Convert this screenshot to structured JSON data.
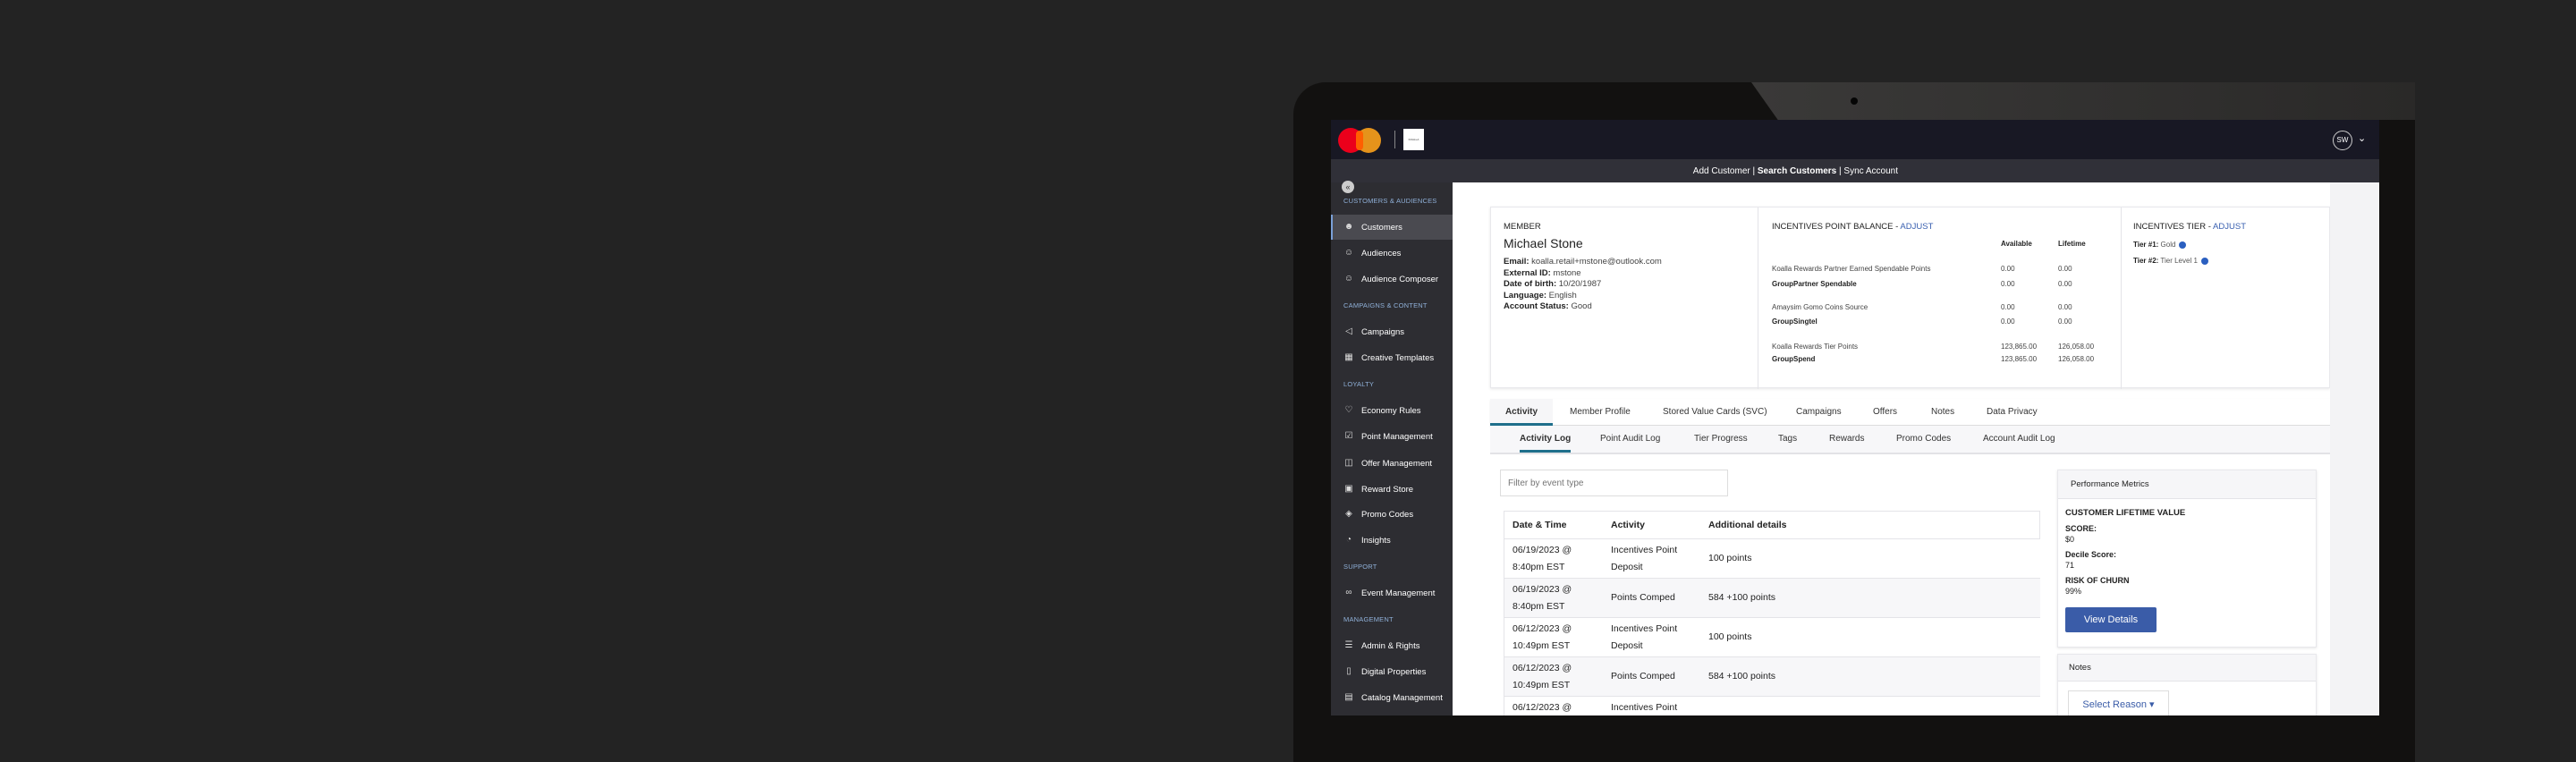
{
  "topbar": {
    "brand_logo": "mastercard-logo",
    "client_logo": "KOALLA",
    "avatar_initials": "SW"
  },
  "subnav": {
    "add": "Add Customer",
    "sep1": " | ",
    "search": "Search Customers",
    "sep2": " | ",
    "sync": "Sync Account"
  },
  "sidebar": {
    "sections": [
      "CUSTOMERS & AUDIENCES",
      "CAMPAIGNS & CONTENT",
      "LOYALTY",
      "SUPPORT",
      "MANAGEMENT"
    ],
    "items": [
      {
        "label": "Customers",
        "icon": "user-icon",
        "active": true
      },
      {
        "label": "Audiences",
        "icon": "users-icon"
      },
      {
        "label": "Audience Composer",
        "icon": "users-icon"
      },
      {
        "label": "Campaigns",
        "icon": "megaphone-icon"
      },
      {
        "label": "Creative Templates",
        "icon": "template-icon"
      },
      {
        "label": "Economy Rules",
        "icon": "heart-icon"
      },
      {
        "label": "Point Management",
        "icon": "checkbox-edit-icon"
      },
      {
        "label": "Offer Management",
        "icon": "gift-icon"
      },
      {
        "label": "Reward Store",
        "icon": "shopping-bag-icon"
      },
      {
        "label": "Promo Codes",
        "icon": "tag-icon"
      },
      {
        "label": "Insights",
        "icon": "pie-chart-icon"
      },
      {
        "label": "Event Management",
        "icon": "link-icon"
      },
      {
        "label": "Admin & Rights",
        "icon": "sliders-icon"
      },
      {
        "label": "Digital Properties",
        "icon": "mobile-icon"
      },
      {
        "label": "Catalog Management",
        "icon": "book-icon"
      }
    ]
  },
  "member": {
    "heading": "MEMBER",
    "name": "Michael Stone",
    "fields": [
      {
        "k": "Email:",
        "v": " koalla.retail+mstone@outlook.com"
      },
      {
        "k": "External ID:",
        "v": " mstone"
      },
      {
        "k": "Date of birth:",
        "v": " 10/20/1987"
      },
      {
        "k": "Language:",
        "v": " English"
      },
      {
        "k": "Account Status:",
        "v": " Good"
      }
    ]
  },
  "balance": {
    "heading": "INCENTIVES POINT BALANCE - ",
    "adjust": "ADJUST",
    "col_available": "Available",
    "col_lifetime": "Lifetime",
    "rows": [
      {
        "label": "Koalla Rewards Partner Earned Spendable Points",
        "available": "0.00",
        "lifetime": "0.00",
        "bold": false
      },
      {
        "label": "GroupPartner Spendable",
        "available": "0.00",
        "lifetime": "0.00",
        "bold": true
      },
      {
        "label": "Amaysim Gomo Coins Source",
        "available": "0.00",
        "lifetime": "0.00",
        "bold": false
      },
      {
        "label": "GroupSingtel",
        "available": "0.00",
        "lifetime": "0.00",
        "bold": true
      },
      {
        "label": "Koalla Rewards Tier Points",
        "available": "123,865.00",
        "lifetime": "126,058.00",
        "bold": false
      },
      {
        "label": "GroupSpend",
        "available": "123,865.00",
        "lifetime": "126,058.00",
        "bold": true
      }
    ]
  },
  "tier": {
    "heading": "INCENTIVES TIER - ",
    "adjust": "ADJUST",
    "tiers": [
      {
        "k": "Tier #1:",
        "v": " Gold"
      },
      {
        "k": "Tier #2:",
        "v": " Tier Level 1"
      }
    ]
  },
  "tabs": [
    "Activity",
    "Member Profile",
    "Stored Value Cards (SVC)",
    "Campaigns",
    "Offers",
    "Notes",
    "Data Privacy"
  ],
  "subtabs": [
    "Activity Log",
    "Point Audit Log",
    "Tier Progress",
    "Tags",
    "Rewards",
    "Promo Codes",
    "Account Audit Log"
  ],
  "filter": {
    "placeholder": "Filter by event type"
  },
  "table": {
    "headers": [
      "Date & Time",
      "Activity",
      "Additional details"
    ],
    "rows": [
      {
        "date1": "06/19/2023 @",
        "date2": "8:40pm EST",
        "act1": "Incentives Point",
        "act2": "Deposit",
        "details": "100 points"
      },
      {
        "date1": "06/19/2023 @",
        "date2": "8:40pm EST",
        "act1": "Points Comped",
        "act2": "",
        "details": "584 +100 points"
      },
      {
        "date1": "06/12/2023 @",
        "date2": "10:49pm EST",
        "act1": "Incentives Point",
        "act2": "Deposit",
        "details": "100 points"
      },
      {
        "date1": "06/12/2023 @",
        "date2": "10:49pm EST",
        "act1": "Points Comped",
        "act2": "",
        "details": "584 +100 points"
      },
      {
        "date1": "06/12/2023 @",
        "date2": "",
        "act1": "Incentives Point",
        "act2": "",
        "details": ""
      }
    ]
  },
  "metrics": {
    "title": "Performance Metrics",
    "clv": "CUSTOMER LIFETIME VALUE",
    "score_label": "SCORE:",
    "score": "$0",
    "decile_label": "Decile Score:",
    "decile": "71",
    "churn_label": "RISK OF CHURN",
    "churn": "99%",
    "button": "View Details"
  },
  "notes": {
    "title": "Notes",
    "select": "Select Reason"
  },
  "colors": {
    "accent": "#3a5ca8",
    "tab_underline": "#1f6f8b",
    "topbar": "#181824",
    "sidebar": "#2d2d32"
  }
}
